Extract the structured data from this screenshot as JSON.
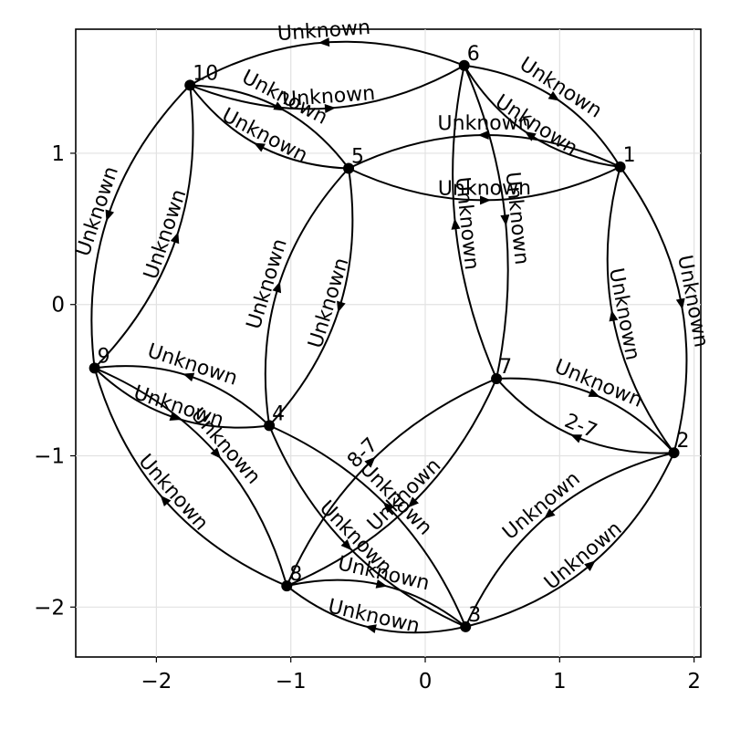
{
  "diagram": {
    "axes": {
      "xlim": [
        -2.6,
        2.05
      ],
      "ylim": [
        -2.33,
        1.82
      ],
      "xticks": [
        {
          "v": -2,
          "label": "−2"
        },
        {
          "v": -1,
          "label": "−1"
        },
        {
          "v": 0,
          "label": "0"
        },
        {
          "v": 1,
          "label": "1"
        },
        {
          "v": 2,
          "label": "2"
        }
      ],
      "yticks": [
        {
          "v": -2,
          "label": "−2"
        },
        {
          "v": -1,
          "label": "−1"
        },
        {
          "v": 0,
          "label": "0"
        },
        {
          "v": 1,
          "label": "1"
        }
      ],
      "grid": true
    },
    "nodes": [
      {
        "id": "1",
        "x": 1.45,
        "y": 0.91
      },
      {
        "id": "2",
        "x": 1.85,
        "y": -0.98
      },
      {
        "id": "3",
        "x": 0.3,
        "y": -2.13
      },
      {
        "id": "4",
        "x": -1.16,
        "y": -0.8
      },
      {
        "id": "5",
        "x": -0.57,
        "y": 0.9
      },
      {
        "id": "6",
        "x": 0.29,
        "y": 1.58
      },
      {
        "id": "7",
        "x": 0.53,
        "y": -0.49
      },
      {
        "id": "8",
        "x": -1.03,
        "y": -1.86
      },
      {
        "id": "9",
        "x": -2.46,
        "y": -0.42
      },
      {
        "id": "10",
        "x": -1.75,
        "y": 1.45
      }
    ],
    "edges": [
      {
        "from": "1",
        "to": "2",
        "label": "Unknown",
        "bend": -0.12
      },
      {
        "from": "2",
        "to": "1",
        "label": "Unknown",
        "bend": -0.12
      },
      {
        "from": "1",
        "to": "5",
        "label": "Unknown",
        "bend": 0.12
      },
      {
        "from": "5",
        "to": "1",
        "label": "Unknown",
        "bend": 0.12
      },
      {
        "from": "1",
        "to": "6",
        "label": "Unknown",
        "bend": -0.12
      },
      {
        "from": "6",
        "to": "1",
        "label": "Unknown",
        "bend": -0.12
      },
      {
        "from": "2",
        "to": "3",
        "label": "Unknown",
        "bend": 0.12
      },
      {
        "from": "3",
        "to": "2",
        "label": "Unknown",
        "bend": 0.12
      },
      {
        "from": "2",
        "to": "7",
        "label": "2-7",
        "bend": -0.12
      },
      {
        "from": "7",
        "to": "2",
        "label": "Unknown",
        "bend": -0.12
      },
      {
        "from": "3",
        "to": "4",
        "label": "Unknown",
        "bend": 0.1
      },
      {
        "from": "4",
        "to": "3",
        "label": "Unknown",
        "bend": 0.1
      },
      {
        "from": "3",
        "to": "8",
        "label": "Unknown",
        "bend": -0.12
      },
      {
        "from": "8",
        "to": "3",
        "label": "Unknown",
        "bend": -0.12
      },
      {
        "from": "4",
        "to": "5",
        "label": "Unknown",
        "bend": -0.12
      },
      {
        "from": "5",
        "to": "4",
        "label": "Unknown",
        "bend": -0.12
      },
      {
        "from": "4",
        "to": "9",
        "label": "Unknown",
        "bend": 0.12
      },
      {
        "from": "9",
        "to": "4",
        "label": "Unknown",
        "bend": 0.12
      },
      {
        "from": "5",
        "to": "10",
        "label": "Unknown",
        "bend": -0.12
      },
      {
        "from": "10",
        "to": "5",
        "label": "Unknown",
        "bend": -0.12
      },
      {
        "from": "6",
        "to": "7",
        "label": "Unknown",
        "bend": -0.08
      },
      {
        "from": "7",
        "to": "6",
        "label": "Unknown",
        "bend": -0.08
      },
      {
        "from": "6",
        "to": "10",
        "label": "Unknown",
        "bend": 0.12
      },
      {
        "from": "10",
        "to": "6",
        "label": "Unknown",
        "bend": 0.12
      },
      {
        "from": "7",
        "to": "8",
        "label": "Unknown",
        "bend": -0.1
      },
      {
        "from": "8",
        "to": "7",
        "label": "8-7",
        "bend": -0.1
      },
      {
        "from": "8",
        "to": "9",
        "label": "Unknown",
        "bend": -0.12
      },
      {
        "from": "9",
        "to": "8",
        "label": "Unknown",
        "bend": -0.12
      },
      {
        "from": "9",
        "to": "10",
        "label": "Unknown",
        "bend": 0.12
      },
      {
        "from": "10",
        "to": "9",
        "label": "Unknown",
        "bend": 0.12
      }
    ]
  }
}
